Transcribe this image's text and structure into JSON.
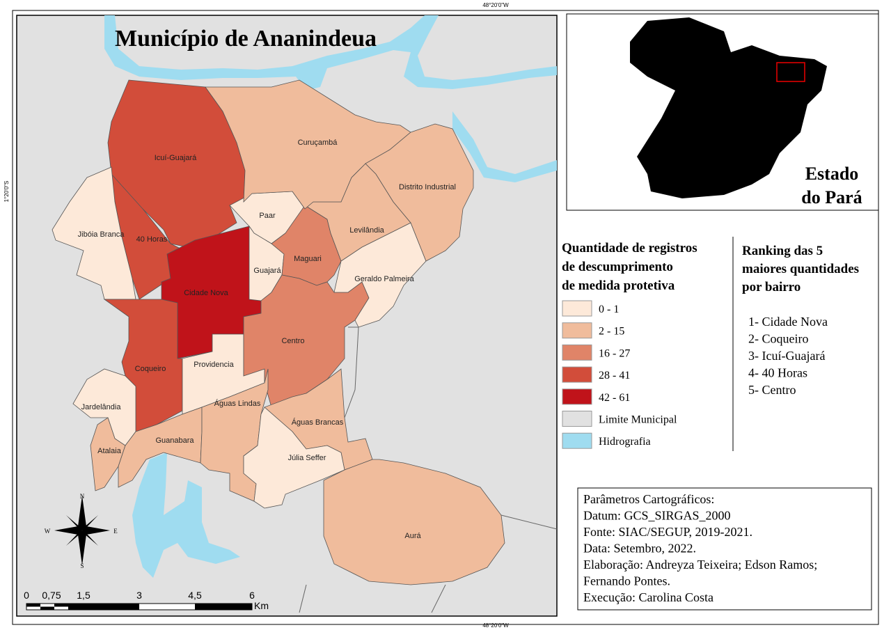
{
  "map": {
    "title": "Município de Ananindeua",
    "coordinates": {
      "top": "48°20'0\"W",
      "bottom": "48°20'0\"W",
      "left": "1°20'0\"S"
    },
    "boundary_color": "#e1e1e1",
    "water_color": "#9fdcf0",
    "neighborhoods": [
      {
        "name": "Icuí-Guajará",
        "color": "#d24d3a"
      },
      {
        "name": "40 Horas",
        "color": "#d24d3a"
      },
      {
        "name": "Jibóia Branca",
        "color": "#fde9d9"
      },
      {
        "name": "Cidade Nova",
        "color": "#c0131a"
      },
      {
        "name": "Coqueiro",
        "color": "#d24d3a"
      },
      {
        "name": "Providencia",
        "color": "#fde9d9"
      },
      {
        "name": "Paar",
        "color": "#fde9d9"
      },
      {
        "name": "Guajará",
        "color": "#fde9d9"
      },
      {
        "name": "Maguari",
        "color": "#e08468"
      },
      {
        "name": "Centro",
        "color": "#e08468"
      },
      {
        "name": "Geraldo Palmeira",
        "color": "#fde9d9"
      },
      {
        "name": "Levilândia",
        "color": "#f0bc9c"
      },
      {
        "name": "Curuçambá",
        "color": "#f0bc9c"
      },
      {
        "name": "Distrito Industrial",
        "color": "#f0bc9c"
      },
      {
        "name": "Jardelândia",
        "color": "#fde9d9"
      },
      {
        "name": "Atalaia",
        "color": "#f0bc9c"
      },
      {
        "name": "Guanabara",
        "color": "#f0bc9c"
      },
      {
        "name": "Águas Lindas",
        "color": "#f0bc9c"
      },
      {
        "name": "Águas Brancas",
        "color": "#f0bc9c"
      },
      {
        "name": "Júlia Seffer",
        "color": "#fde9d9"
      },
      {
        "name": "Aurá",
        "color": "#f0bc9c"
      }
    ],
    "north_arrow": {
      "n": "N",
      "s": "S",
      "e": "E",
      "w": "W"
    },
    "scale_bar": {
      "labels": [
        "0",
        "0,75",
        "1,5",
        "3",
        "4,5",
        "6"
      ],
      "unit": "Km"
    }
  },
  "inset": {
    "label_lines": [
      "Estado",
      "do Pará"
    ]
  },
  "legend": {
    "title_lines": [
      "Quantidade de registros",
      "de descumprimento",
      "de medida protetiva"
    ],
    "items": [
      {
        "label": "0 - 1",
        "color": "#fde9d9"
      },
      {
        "label": "2 - 15",
        "color": "#f0bc9c"
      },
      {
        "label": "16 - 27",
        "color": "#e08468"
      },
      {
        "label": "28 - 41",
        "color": "#d24d3a"
      },
      {
        "label": "42 - 61",
        "color": "#c0131a"
      },
      {
        "label": "Limite Municipal",
        "color": "#e1e1e1"
      },
      {
        "label": "Hidrografia",
        "color": "#9fdcf0"
      }
    ]
  },
  "ranking": {
    "title_lines": [
      "Ranking das 5",
      "maiores quantidades",
      "por bairro"
    ],
    "items": [
      "1- Cidade Nova",
      "2- Coqueiro",
      "3- Icuí-Guajará",
      "4- 40 Horas",
      "5- Centro"
    ]
  },
  "parameters": {
    "lines": [
      "Parâmetros Cartográficos:",
      "Datum: GCS_SIRGAS_2000",
      "Fonte: SIAC/SEGUP, 2019-2021.",
      "Data: Setembro, 2022.",
      "Elaboração: Andreyza Teixeira; Edson Ramos;",
      "Fernando Pontes.",
      "Execução: Carolina Costa"
    ]
  }
}
